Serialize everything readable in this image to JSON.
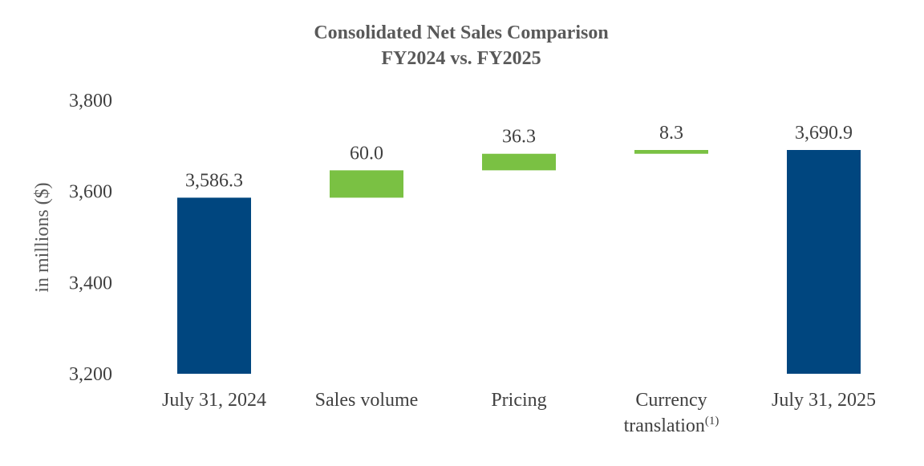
{
  "chart_data": {
    "type": "waterfall",
    "title": "Consolidated Net Sales Comparison",
    "subtitle": "FY2024 vs. FY2025",
    "ylabel": "in millions ($)",
    "xlabel": "",
    "ylim": [
      3200,
      3800
    ],
    "yticks": [
      3200,
      3400,
      3600,
      3800
    ],
    "ytick_labels": [
      "3,200",
      "3,400",
      "3,600",
      "3,800"
    ],
    "grid": false,
    "legend": "none",
    "categories": [
      {
        "label": "July 31, 2024",
        "label_line2": "",
        "superscript": ""
      },
      {
        "label": "Sales volume",
        "label_line2": "",
        "superscript": ""
      },
      {
        "label": "Pricing",
        "label_line2": "",
        "superscript": ""
      },
      {
        "label": "Currency",
        "label_line2": "translation",
        "superscript": "(1)"
      },
      {
        "label": "July 31, 2025",
        "label_line2": "",
        "superscript": ""
      }
    ],
    "bars": [
      {
        "kind": "total",
        "start": 3200,
        "end": 3586.3,
        "value": 3586.3,
        "label": "3,586.3"
      },
      {
        "kind": "increase",
        "start": 3586.3,
        "end": 3646.3,
        "value": 60.0,
        "label": "60.0"
      },
      {
        "kind": "increase",
        "start": 3646.3,
        "end": 3682.6,
        "value": 36.3,
        "label": "36.3"
      },
      {
        "kind": "increase",
        "start": 3682.6,
        "end": 3690.9,
        "value": 8.3,
        "label": "8.3"
      },
      {
        "kind": "total",
        "start": 3200,
        "end": 3690.9,
        "value": 3690.9,
        "label": "3,690.9"
      }
    ],
    "colors": {
      "total": "#00467F",
      "increase": "#7AC143",
      "text": "#404040",
      "title": "#595959",
      "axis": "#D9D9D9"
    }
  }
}
